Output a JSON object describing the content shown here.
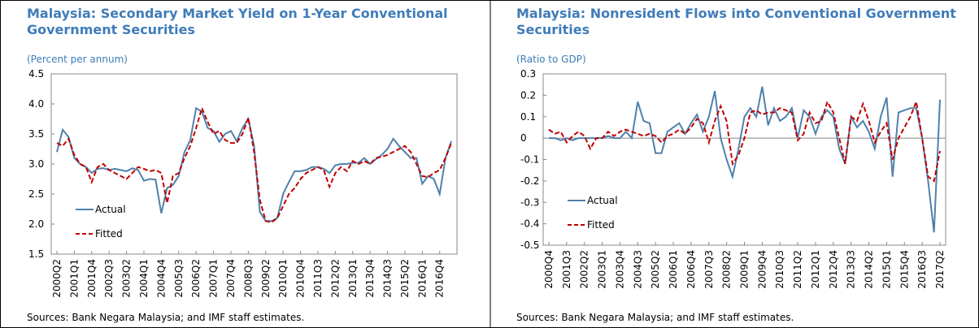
{
  "chart_data": [
    {
      "type": "line",
      "title": "Malaysia: Secondary Market Yield on 1-Year Conventional Government Securities",
      "subtitle": "(Percent per annum)",
      "source": "Sources: Bank Negara Malaysia; and IMF staff estimates.",
      "categories": [
        "2000Q2",
        null,
        null,
        "2001Q1",
        null,
        null,
        "2001Q4",
        null,
        null,
        "2002Q3",
        null,
        null,
        "2003Q2",
        null,
        null,
        "2004Q1",
        null,
        null,
        "2004Q4",
        null,
        null,
        "2005Q3",
        null,
        null,
        "2006Q2",
        null,
        null,
        "2007Q1",
        null,
        null,
        "2007Q4",
        null,
        null,
        "2008Q3",
        null,
        null,
        "2009Q2",
        null,
        null,
        "2010Q1",
        null,
        null,
        "2010Q4",
        null,
        null,
        "2011Q3",
        null,
        null,
        "2012Q2",
        null,
        null,
        "2013Q1",
        null,
        null,
        "2013Q4",
        null,
        null,
        "2014Q3",
        null,
        null,
        "2015Q2",
        null,
        null,
        "2016Q1",
        null,
        null,
        "2016Q4",
        null,
        null
      ],
      "series": [
        {
          "name": "Actual",
          "color": "#4f81ad",
          "dash": false,
          "values": [
            3.2,
            3.57,
            3.45,
            3.1,
            3.0,
            2.95,
            2.85,
            2.92,
            2.93,
            2.9,
            2.92,
            2.9,
            2.88,
            2.93,
            2.9,
            2.72,
            2.75,
            2.74,
            2.18,
            2.6,
            2.65,
            2.8,
            3.2,
            3.4,
            3.93,
            3.87,
            3.6,
            3.55,
            3.37,
            3.5,
            3.55,
            3.38,
            3.6,
            3.75,
            3.3,
            2.2,
            2.05,
            2.05,
            2.1,
            2.5,
            2.7,
            2.88,
            2.88,
            2.9,
            2.95,
            2.95,
            2.92,
            2.85,
            2.98,
            3.0,
            3.0,
            3.02,
            3.02,
            3.1,
            3.0,
            3.08,
            3.15,
            3.25,
            3.42,
            3.3,
            3.2,
            3.1,
            3.1,
            2.67,
            2.8,
            2.75,
            2.5,
            3.1,
            3.38
          ]
        },
        {
          "name": "Fitted",
          "color": "#c00000",
          "dash": true,
          "values": [
            3.35,
            3.3,
            3.42,
            3.15,
            3.0,
            2.95,
            2.7,
            2.95,
            3.0,
            2.9,
            2.85,
            2.8,
            2.75,
            2.85,
            2.95,
            2.92,
            2.88,
            2.9,
            2.85,
            2.35,
            2.8,
            2.85,
            3.1,
            3.3,
            3.6,
            3.93,
            3.7,
            3.5,
            3.55,
            3.4,
            3.35,
            3.35,
            3.5,
            3.77,
            3.2,
            2.4,
            2.05,
            2.03,
            2.1,
            2.3,
            2.5,
            2.6,
            2.75,
            2.85,
            2.9,
            2.95,
            2.9,
            2.62,
            2.85,
            2.95,
            2.88,
            3.05,
            3.0,
            3.05,
            3.0,
            3.1,
            3.12,
            3.15,
            3.2,
            3.25,
            3.3,
            3.2,
            3.0,
            2.8,
            2.78,
            2.85,
            2.9,
            3.1,
            3.35
          ]
        }
      ],
      "ylim": [
        1.5,
        4.5
      ],
      "yticks": [
        1.5,
        {
          "value": 2,
          "label": "2.0"
        },
        2.5,
        {
          "value": 3,
          "label": "3.0"
        },
        3.5,
        {
          "value": 4,
          "label": "4.0"
        },
        4.5
      ],
      "legend": "lower left"
    },
    {
      "type": "line",
      "title": "Malaysia: Nonresident Flows into Conventional Government Securities",
      "subtitle": "(Ratio to GDP)",
      "source": "Sources: Bank Negara Malaysia; and IMF staff estimates.",
      "categories": [
        "2000Q4",
        null,
        null,
        "2001Q3",
        null,
        null,
        "2002Q2",
        null,
        null,
        "2003Q1",
        null,
        null,
        "2003Q4",
        null,
        null,
        "2004Q3",
        null,
        null,
        "2005Q2",
        null,
        null,
        "2006Q1",
        null,
        null,
        "2006Q4",
        null,
        null,
        "2007Q3",
        null,
        null,
        "2008Q2",
        null,
        null,
        "2009Q1",
        null,
        null,
        "2009Q4",
        null,
        null,
        "2010Q3",
        null,
        null,
        "2011Q2",
        null,
        null,
        "2012Q1",
        null,
        null,
        "2012Q4",
        null,
        null,
        "2013Q3",
        null,
        null,
        "2014Q2",
        null,
        null,
        "2015Q1",
        null,
        null,
        "2015Q4",
        null,
        null,
        "2016Q3",
        null,
        null,
        "2017Q2"
      ],
      "series": [
        {
          "name": "Actual",
          "color": "#4f81ad",
          "dash": false,
          "values": [
            0.0,
            0.0,
            -0.01,
            0.0,
            -0.01,
            0.0,
            0.0,
            0.0,
            0.0,
            0.0,
            0.01,
            0.0,
            0.0,
            0.03,
            0.0,
            0.17,
            0.08,
            0.07,
            -0.07,
            -0.07,
            0.03,
            0.05,
            0.07,
            0.02,
            0.07,
            0.11,
            0.03,
            0.1,
            0.22,
            0.0,
            -0.1,
            -0.18,
            -0.05,
            0.1,
            0.14,
            0.1,
            0.24,
            0.06,
            0.14,
            0.08,
            0.1,
            0.14,
            0.0,
            0.13,
            0.1,
            0.02,
            0.1,
            0.13,
            0.1,
            -0.05,
            -0.12,
            0.1,
            0.05,
            0.08,
            0.03,
            -0.05,
            0.1,
            0.19,
            -0.18,
            0.12,
            0.13,
            0.14,
            0.14,
            0.0,
            -0.2,
            -0.44,
            0.18
          ]
        },
        {
          "name": "Fitted",
          "color": "#c00000",
          "dash": true,
          "values": [
            0.04,
            0.02,
            0.03,
            -0.02,
            0.01,
            0.03,
            0.01,
            -0.05,
            0.0,
            0.0,
            0.03,
            0.01,
            0.03,
            0.04,
            0.03,
            0.02,
            0.01,
            0.02,
            0.01,
            -0.02,
            0.01,
            0.02,
            0.04,
            0.02,
            0.05,
            0.09,
            0.07,
            -0.02,
            0.08,
            0.15,
            0.08,
            -0.12,
            -0.08,
            0.0,
            0.12,
            0.13,
            0.11,
            0.12,
            0.12,
            0.14,
            0.13,
            0.12,
            -0.01,
            0.02,
            0.12,
            0.07,
            0.08,
            0.17,
            0.12,
            0.0,
            -0.12,
            0.1,
            0.08,
            0.16,
            0.08,
            -0.02,
            0.03,
            0.07,
            -0.1,
            0.0,
            0.05,
            0.1,
            0.17,
            0.0,
            -0.18,
            -0.2,
            -0.06
          ]
        }
      ],
      "ylim": [
        -0.5,
        0.3
      ],
      "yticks": [
        -0.5,
        -0.4,
        -0.3,
        -0.2,
        -0.1,
        0,
        0.1,
        0.2,
        0.3
      ],
      "legend": "lower left"
    }
  ]
}
